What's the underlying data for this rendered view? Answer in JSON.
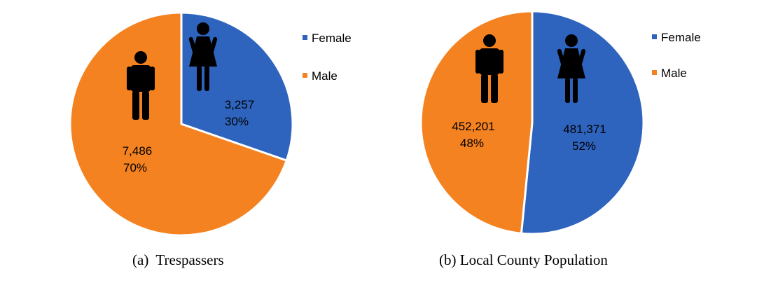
{
  "colors": {
    "female": "#2E64BE",
    "male": "#F58220",
    "separator": "#ffffff",
    "icon": "#000000"
  },
  "icons": {
    "female": "woman-icon",
    "male": "man-icon"
  },
  "chart_data": [
    {
      "type": "pie",
      "caption": "(a)  Trespassers",
      "legend": [
        "Female",
        "Male"
      ],
      "legend_position": "right",
      "start_angle_deg": 0,
      "direction": "clockwise",
      "slices": [
        {
          "label": "Female",
          "value": 3257,
          "value_text": "3,257",
          "percent_text": "30%",
          "color": "#2E64BE"
        },
        {
          "label": "Male",
          "value": 7486,
          "value_text": "7,486",
          "percent_text": "70%",
          "color": "#F58220"
        }
      ]
    },
    {
      "type": "pie",
      "caption": "(b) Local County Population",
      "legend": [
        "Female",
        "Male"
      ],
      "legend_position": "right",
      "start_angle_deg": 0,
      "direction": "clockwise",
      "slices": [
        {
          "label": "Female",
          "value": 481371,
          "value_text": "481,371",
          "percent_text": "52%",
          "color": "#2E64BE"
        },
        {
          "label": "Male",
          "value": 452201,
          "value_text": "452,201",
          "percent_text": "48%",
          "color": "#F58220"
        }
      ]
    }
  ]
}
